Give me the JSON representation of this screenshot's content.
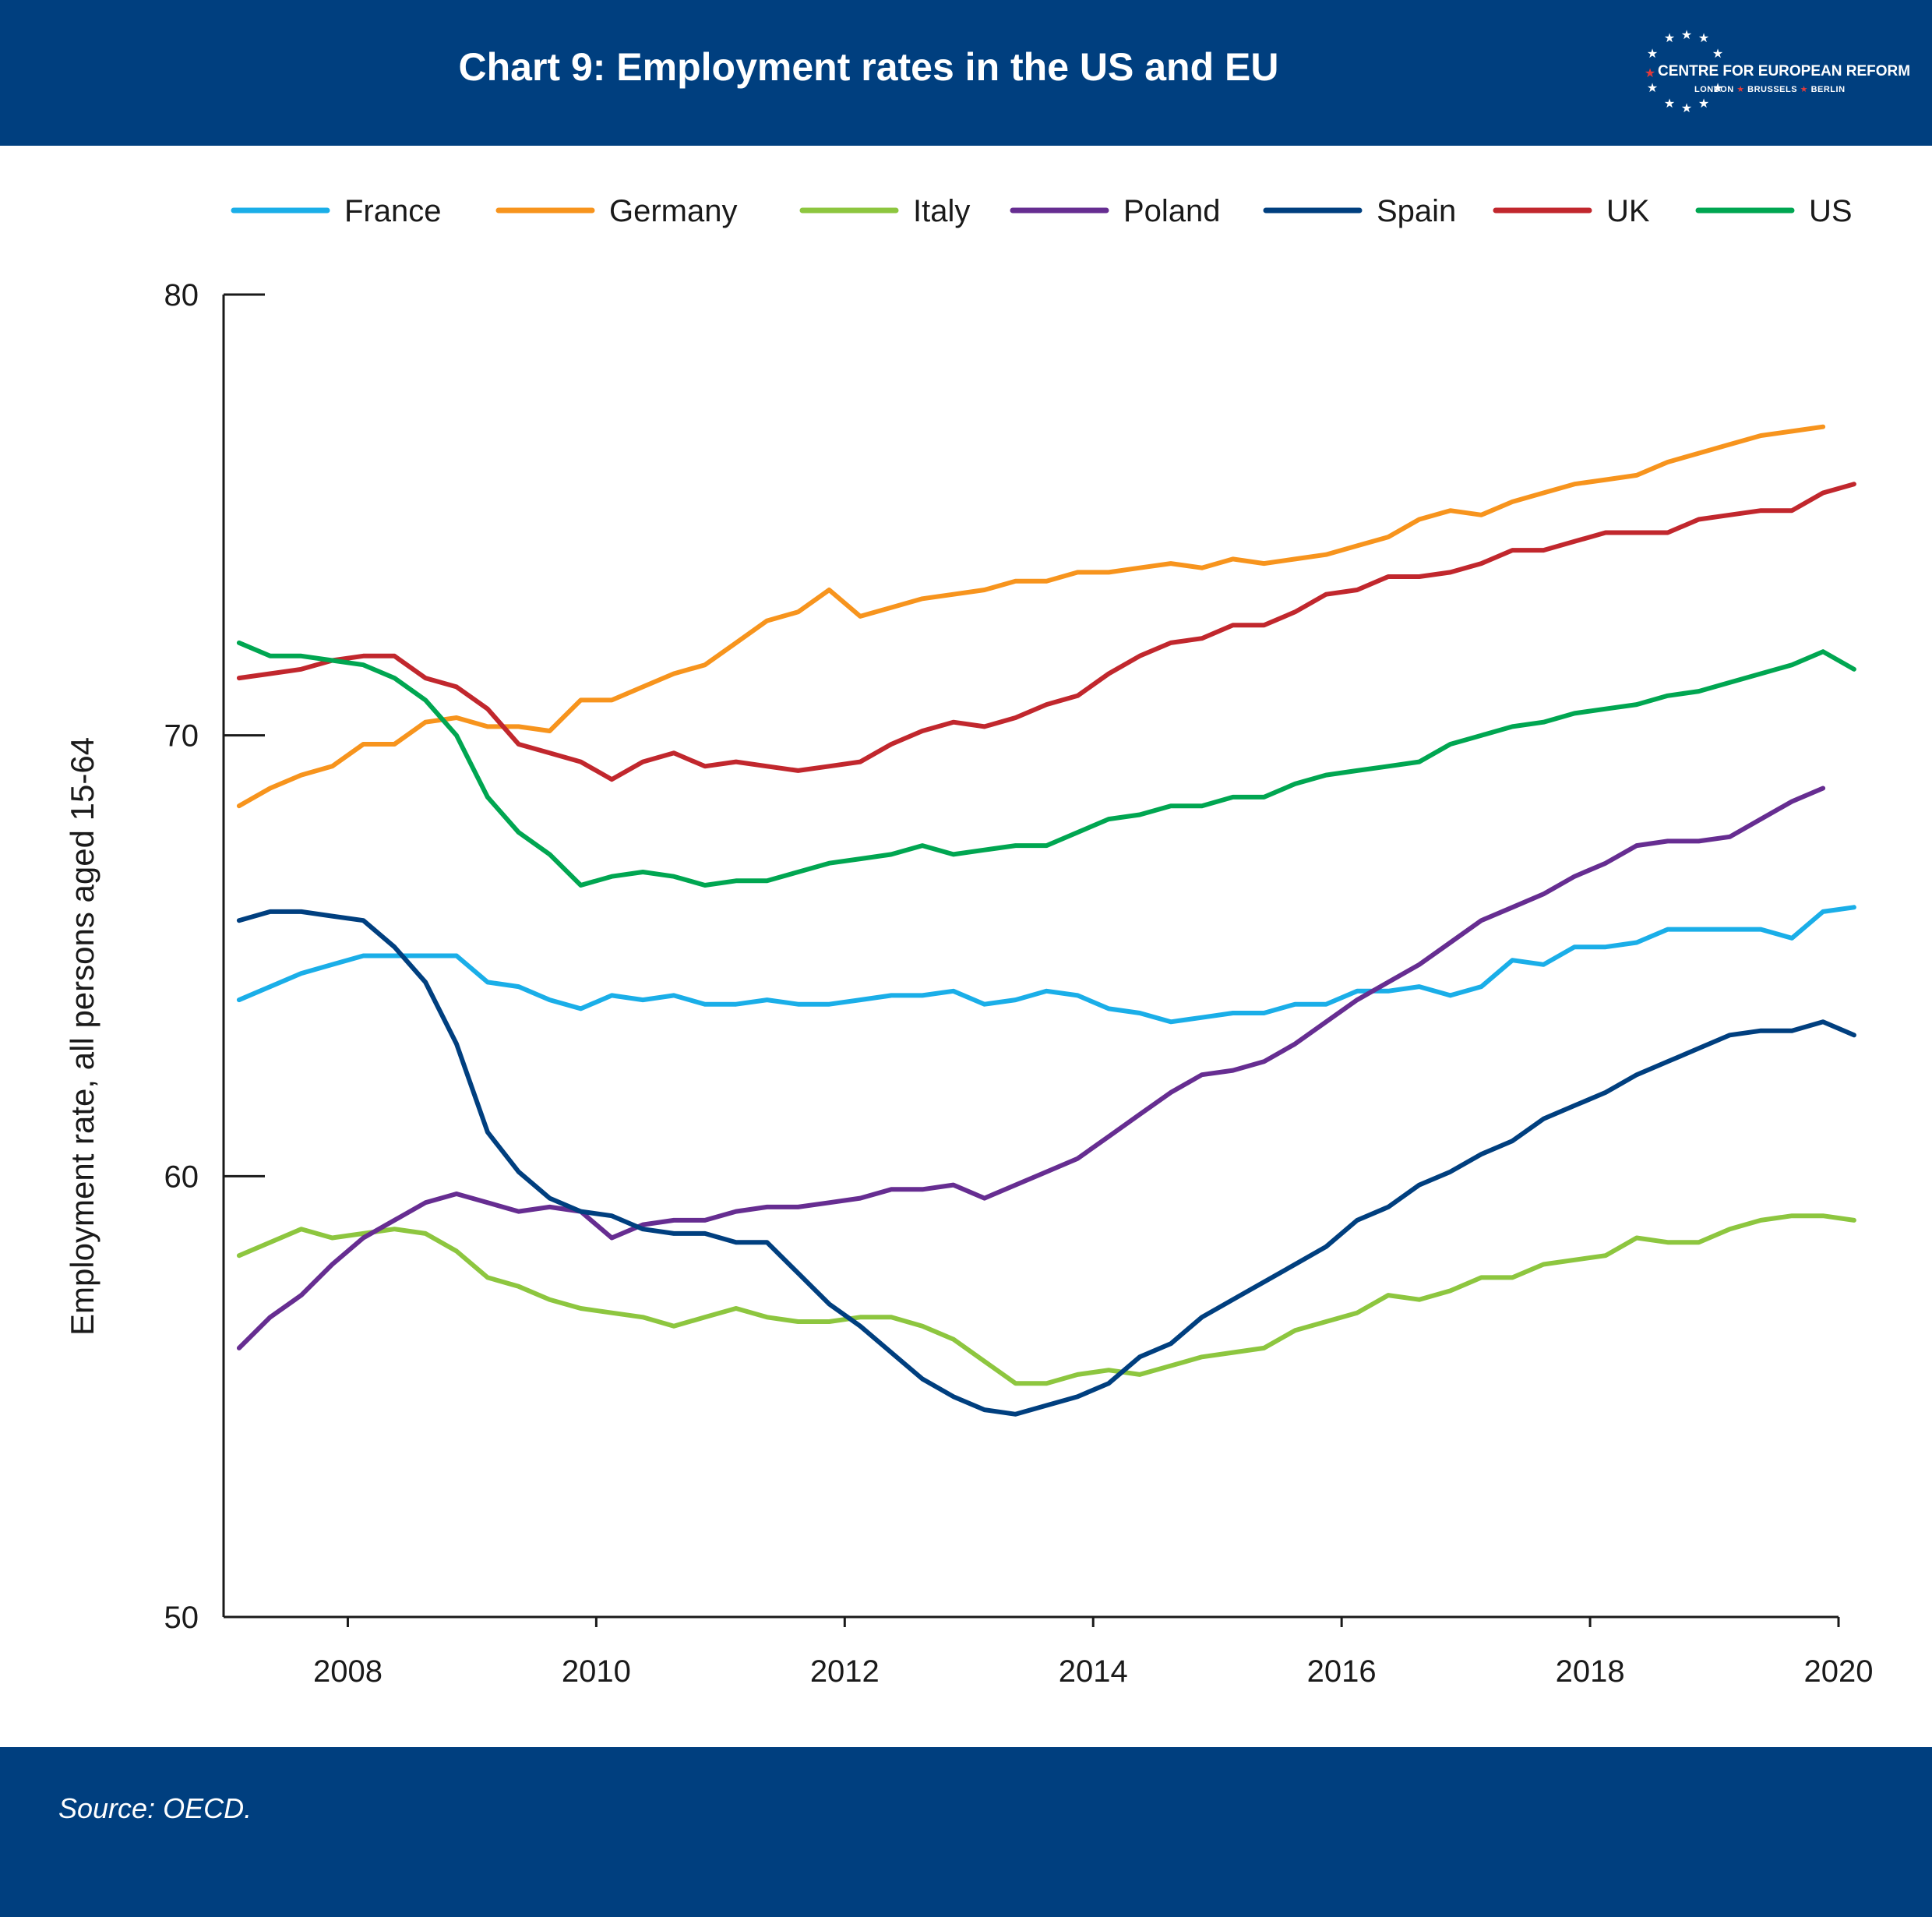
{
  "header": {
    "title": "Chart 9: Employment rates in the US and EU",
    "logo_text": "CENTRE FOR EUROPEAN REFORM",
    "logo_cities": [
      "LONDON",
      "BRUSSELS",
      "BERLIN"
    ]
  },
  "footer": {
    "source": "Source: OECD."
  },
  "colors": {
    "header_bg": "#003f7f",
    "France": "#1aaee8",
    "Germany": "#f7941d",
    "Italy": "#8dc63f",
    "Poland": "#662d91",
    "Spain": "#003f7f",
    "UK": "#c1272d",
    "US": "#00a651"
  },
  "chart_data": {
    "type": "line",
    "title": "Chart 9: Employment rates in the US and EU",
    "xlabel": "",
    "ylabel": "Employment rate, all persons aged 15-64",
    "xlim": [
      2007,
      2020
    ],
    "ylim": [
      50,
      80
    ],
    "x_ticks": [
      2008,
      2010,
      2012,
      2014,
      2016,
      2018,
      2020
    ],
    "y_ticks": [
      50,
      60,
      70,
      80
    ],
    "grid": false,
    "legend_position": "top",
    "x_start": 2007.125,
    "x_step": 0.25,
    "series": [
      {
        "name": "France",
        "values": [
          64.0,
          64.3,
          64.6,
          64.8,
          65.0,
          65.0,
          65.0,
          65.0,
          64.4,
          64.3,
          64.0,
          63.8,
          64.1,
          64.0,
          64.1,
          63.9,
          63.9,
          64.0,
          63.9,
          63.9,
          64.0,
          64.1,
          64.1,
          64.2,
          63.9,
          64.0,
          64.2,
          64.1,
          63.8,
          63.7,
          63.5,
          63.6,
          63.7,
          63.7,
          63.9,
          63.9,
          64.2,
          64.2,
          64.3,
          64.1,
          64.3,
          64.9,
          64.8,
          65.2,
          65.2,
          65.3,
          65.6,
          65.6,
          65.6,
          65.6,
          65.4,
          66.0,
          66.1
        ]
      },
      {
        "name": "Germany",
        "values": [
          68.4,
          68.8,
          69.1,
          69.3,
          69.8,
          69.8,
          70.3,
          70.4,
          70.2,
          70.2,
          70.1,
          70.8,
          70.8,
          71.1,
          71.4,
          71.6,
          72.1,
          72.6,
          72.8,
          73.3,
          72.7,
          72.9,
          73.1,
          73.2,
          73.3,
          73.5,
          73.5,
          73.7,
          73.7,
          73.8,
          73.9,
          73.8,
          74.0,
          73.9,
          74.0,
          74.1,
          74.3,
          74.5,
          74.9,
          75.1,
          75.0,
          75.3,
          75.5,
          75.7,
          75.8,
          75.9,
          76.2,
          76.4,
          76.6,
          76.8,
          76.9,
          77.0
        ]
      },
      {
        "name": "Italy",
        "values": [
          58.2,
          58.5,
          58.8,
          58.6,
          58.7,
          58.8,
          58.7,
          58.3,
          57.7,
          57.5,
          57.2,
          57.0,
          56.9,
          56.8,
          56.6,
          56.8,
          57.0,
          56.8,
          56.7,
          56.7,
          56.8,
          56.8,
          56.6,
          56.3,
          55.8,
          55.3,
          55.3,
          55.5,
          55.6,
          55.5,
          55.7,
          55.9,
          56.0,
          56.1,
          56.5,
          56.7,
          56.9,
          57.3,
          57.2,
          57.4,
          57.7,
          57.7,
          58.0,
          58.1,
          58.2,
          58.6,
          58.5,
          58.5,
          58.8,
          59.0,
          59.1,
          59.1,
          59.0
        ]
      },
      {
        "name": "Poland",
        "values": [
          56.1,
          56.8,
          57.3,
          58.0,
          58.6,
          59.0,
          59.4,
          59.6,
          59.4,
          59.2,
          59.3,
          59.2,
          58.6,
          58.9,
          59.0,
          59.0,
          59.2,
          59.3,
          59.3,
          59.4,
          59.5,
          59.7,
          59.7,
          59.8,
          59.5,
          59.8,
          60.1,
          60.4,
          60.9,
          61.4,
          61.9,
          62.3,
          62.4,
          62.6,
          63.0,
          63.5,
          64.0,
          64.4,
          64.8,
          65.3,
          65.8,
          66.1,
          66.4,
          66.8,
          67.1,
          67.5,
          67.6,
          67.6,
          67.7,
          68.1,
          68.5,
          68.8
        ]
      },
      {
        "name": "Spain",
        "values": [
          65.8,
          66.0,
          66.0,
          65.9,
          65.8,
          65.2,
          64.4,
          63.0,
          61.0,
          60.1,
          59.5,
          59.2,
          59.1,
          58.8,
          58.7,
          58.7,
          58.5,
          58.5,
          57.8,
          57.1,
          56.6,
          56.0,
          55.4,
          55.0,
          54.7,
          54.6,
          54.8,
          55.0,
          55.3,
          55.9,
          56.2,
          56.8,
          57.2,
          57.6,
          58.0,
          58.4,
          59.0,
          59.3,
          59.8,
          60.1,
          60.5,
          60.8,
          61.3,
          61.6,
          61.9,
          62.3,
          62.6,
          62.9,
          63.2,
          63.3,
          63.3,
          63.5,
          63.2
        ]
      },
      {
        "name": "UK",
        "values": [
          71.3,
          71.4,
          71.5,
          71.7,
          71.8,
          71.8,
          71.3,
          71.1,
          70.6,
          69.8,
          69.6,
          69.4,
          69.0,
          69.4,
          69.6,
          69.3,
          69.4,
          69.3,
          69.2,
          69.3,
          69.4,
          69.8,
          70.1,
          70.3,
          70.2,
          70.4,
          70.7,
          70.9,
          71.4,
          71.8,
          72.1,
          72.2,
          72.5,
          72.5,
          72.8,
          73.2,
          73.3,
          73.6,
          73.6,
          73.7,
          73.9,
          74.2,
          74.2,
          74.4,
          74.6,
          74.6,
          74.6,
          74.9,
          75.0,
          75.1,
          75.1,
          75.5,
          75.7
        ]
      },
      {
        "name": "US",
        "values": [
          72.1,
          71.8,
          71.8,
          71.7,
          71.6,
          71.3,
          70.8,
          70.0,
          68.6,
          67.8,
          67.3,
          66.6,
          66.8,
          66.9,
          66.8,
          66.6,
          66.7,
          66.7,
          66.9,
          67.1,
          67.2,
          67.3,
          67.5,
          67.3,
          67.4,
          67.5,
          67.5,
          67.8,
          68.1,
          68.2,
          68.4,
          68.4,
          68.6,
          68.6,
          68.9,
          69.1,
          69.2,
          69.3,
          69.4,
          69.8,
          70.0,
          70.2,
          70.3,
          70.5,
          70.6,
          70.7,
          70.9,
          71.0,
          71.2,
          71.4,
          71.6,
          71.9,
          71.5
        ]
      }
    ]
  }
}
